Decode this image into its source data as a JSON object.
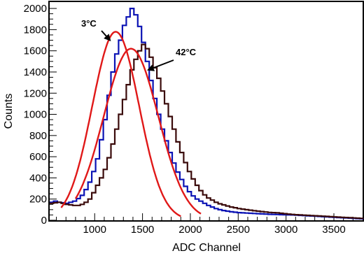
{
  "chart_data": {
    "type": "line",
    "xlabel": "ADC Channel",
    "ylabel": "Counts",
    "xlim": [
      530,
      3800
    ],
    "ylim": [
      0,
      2060
    ],
    "x_ticks": [
      1000,
      1500,
      2000,
      2500,
      3000,
      3500
    ],
    "y_ticks": [
      0,
      200,
      400,
      600,
      800,
      1000,
      1200,
      1400,
      1600,
      1800,
      2000
    ],
    "grid": false,
    "legend": "none",
    "bin_width": 40,
    "series": [
      {
        "kind": "histogram",
        "color": "#0a12b4",
        "x_start": 530,
        "values": [
          170,
          180,
          170,
          165,
          160,
          170,
          180,
          205,
          235,
          290,
          360,
          460,
          580,
          760,
          950,
          1180,
          1400,
          1570,
          1700,
          1840,
          1920,
          2000,
          1940,
          1830,
          1680,
          1500,
          1320,
          1150,
          1000,
          860,
          750,
          640,
          540,
          455,
          385,
          320,
          270,
          230,
          200,
          180,
          160,
          140,
          125,
          110,
          100,
          92,
          86,
          80,
          76,
          72,
          70,
          68,
          66,
          64,
          62,
          60,
          58,
          56,
          55,
          54,
          53,
          52,
          51,
          50,
          48,
          46,
          44,
          42,
          40,
          38,
          36,
          34,
          32,
          30,
          28,
          26,
          24,
          22,
          20,
          18,
          16,
          14
        ]
      },
      {
        "kind": "histogram",
        "color": "#3a0a0a",
        "x_start": 530,
        "values": [
          160,
          165,
          170,
          160,
          150,
          145,
          140,
          140,
          150,
          170,
          200,
          260,
          330,
          400,
          480,
          590,
          720,
          860,
          1000,
          1140,
          1280,
          1420,
          1520,
          1600,
          1660,
          1620,
          1540,
          1440,
          1340,
          1220,
          1100,
          980,
          860,
          740,
          640,
          545,
          460,
          390,
          330,
          280,
          240,
          210,
          190,
          170,
          155,
          145,
          135,
          125,
          118,
          110,
          105,
          100,
          95,
          90,
          86,
          82,
          78,
          74,
          72,
          70,
          66,
          62,
          58,
          55,
          52,
          50,
          48,
          46,
          44,
          42,
          40,
          38,
          36,
          34,
          32,
          30,
          28,
          26,
          24,
          22,
          20,
          18
        ]
      },
      {
        "kind": "gaussian-fit",
        "color": "#e01818",
        "amplitude": 1780,
        "mean": 1220,
        "sigma": 245,
        "x_range": [
          650,
          1900
        ]
      },
      {
        "kind": "gaussian-fit",
        "color": "#e01818",
        "amplitude": 1620,
        "mean": 1380,
        "sigma": 285,
        "x_range": [
          800,
          2110
        ]
      }
    ],
    "annotations": [
      {
        "text": "3°C",
        "tip_x": 1160,
        "tip_y": 1700
      },
      {
        "text": "42°C",
        "tip_x": 1560,
        "tip_y": 1420
      }
    ]
  }
}
